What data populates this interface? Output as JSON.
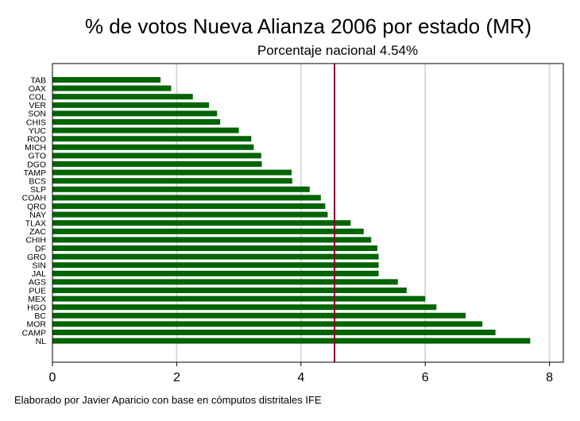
{
  "chart_data": {
    "type": "bar",
    "orientation": "horizontal",
    "title": "% de votos Nueva Alianza 2006 por estado (MR)",
    "subtitle": "Porcentaje nacional 4.54%",
    "note": "Elaborado por Javier Aparicio con base en cómputos distritales IFE",
    "xlim": [
      0,
      8.2
    ],
    "xticks": [
      0,
      2,
      4,
      6,
      8
    ],
    "grid": true,
    "reference_line": {
      "value": 4.54,
      "label": "Porcentaje nacional"
    },
    "categories": [
      "TAB",
      "OAX",
      "COL",
      "VER",
      "SON",
      "CHIS",
      "YUC",
      "ROO",
      "MICH",
      "GTO",
      "DGO",
      "TAMP",
      "BCS",
      "SLP",
      "COAH",
      "QRO",
      "NAY",
      "TLAX",
      "ZAC",
      "CHIH",
      "DF",
      "GRO",
      "SIN",
      "JAL",
      "AGS",
      "PUE",
      "MEX",
      "HGO",
      "BC",
      "MOR",
      "CAMP",
      "NL"
    ],
    "values": [
      1.74,
      1.91,
      2.26,
      2.52,
      2.65,
      2.7,
      3.0,
      3.2,
      3.24,
      3.36,
      3.37,
      3.85,
      3.86,
      4.14,
      4.32,
      4.39,
      4.43,
      4.8,
      5.01,
      5.13,
      5.23,
      5.25,
      5.25,
      5.25,
      5.56,
      5.7,
      6.0,
      6.18,
      6.65,
      6.92,
      7.13,
      7.69
    ],
    "colors": {
      "bar": "#006400",
      "reference": "#8B0032",
      "grid": "#d9d9d9",
      "axis": "#000000"
    }
  }
}
